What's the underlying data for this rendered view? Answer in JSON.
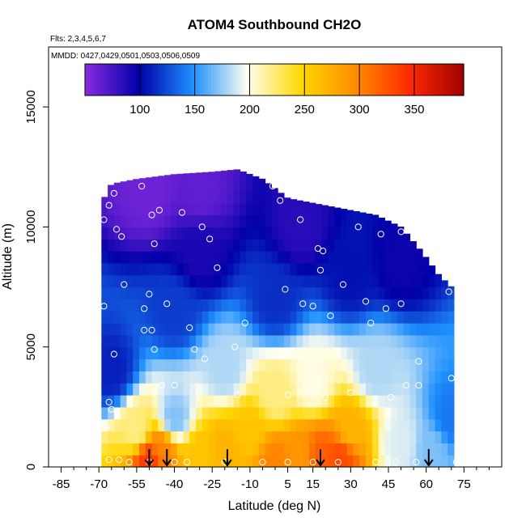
{
  "chart_data": {
    "type": "heatmap",
    "title": "ATOM4 Southbound CH2O",
    "flights_label": "Flts: 2,3,4,5,6,7",
    "dates_label": "MMDD: 0427,0429,0501,0503,0506,0509",
    "xlabel": "Latitude (deg N)",
    "ylabel": "Altitude (m)",
    "xlim": [
      -90,
      90
    ],
    "ylim": [
      0,
      17500
    ],
    "x_ticks": [
      -85,
      -70,
      -55,
      -40,
      -25,
      -10,
      5,
      15,
      30,
      45,
      60,
      75
    ],
    "x_tick_labels": [
      "-85",
      "-70",
      "-55",
      "-40",
      "-25",
      "-10",
      "5",
      "15",
      "30",
      "45",
      "60",
      "75"
    ],
    "y_ticks": [
      0,
      5000,
      10000,
      15000
    ],
    "y_tick_labels": [
      "0",
      "5000",
      "10000",
      "15000"
    ],
    "colorbar": {
      "range": [
        50,
        395
      ],
      "ticks": [
        100,
        150,
        200,
        250,
        300,
        350
      ],
      "tick_labels": [
        "100",
        "150",
        "200",
        "250",
        "300",
        "350"
      ],
      "colors": [
        "#8a2be2",
        "#0000a8",
        "#1e90ff",
        "#fffff0",
        "#ffd700",
        "#ff8c00",
        "#ff2a00",
        "#a00000"
      ]
    },
    "coverage_top_altitude_by_latitude": [
      {
        "lat": -69,
        "alt": 11000
      },
      {
        "lat": -65,
        "alt": 11800
      },
      {
        "lat": -55,
        "alt": 12000
      },
      {
        "lat": -40,
        "alt": 12200
      },
      {
        "lat": -25,
        "alt": 12300
      },
      {
        "lat": -15,
        "alt": 12400
      },
      {
        "lat": -5,
        "alt": 12000
      },
      {
        "lat": 5,
        "alt": 11200
      },
      {
        "lat": 15,
        "alt": 11000
      },
      {
        "lat": 30,
        "alt": 10700
      },
      {
        "lat": 40,
        "alt": 10500
      },
      {
        "lat": 50,
        "alt": 10000
      },
      {
        "lat": 58,
        "alt": 9000
      },
      {
        "lat": 65,
        "alt": 8000
      },
      {
        "lat": 70,
        "alt": 7500
      }
    ],
    "concentration_field_samples": [
      {
        "lat": -50,
        "alt": 300,
        "value": 340
      },
      {
        "lat": -45,
        "alt": 700,
        "value": 300
      },
      {
        "lat": -55,
        "alt": 1500,
        "value": 220
      },
      {
        "lat": -40,
        "alt": 2000,
        "value": 170
      },
      {
        "lat": -30,
        "alt": 500,
        "value": 260
      },
      {
        "lat": -20,
        "alt": 800,
        "value": 270
      },
      {
        "lat": -10,
        "alt": 1500,
        "value": 260
      },
      {
        "lat": 0,
        "alt": 300,
        "value": 300
      },
      {
        "lat": 10,
        "alt": 500,
        "value": 290
      },
      {
        "lat": 18,
        "alt": 400,
        "value": 320
      },
      {
        "lat": 26,
        "alt": 400,
        "value": 330
      },
      {
        "lat": 30,
        "alt": 1500,
        "value": 270
      },
      {
        "lat": 0,
        "alt": 3000,
        "value": 220
      },
      {
        "lat": 15,
        "alt": 3500,
        "value": 200
      },
      {
        "lat": -20,
        "alt": 4000,
        "value": 180
      },
      {
        "lat": 40,
        "alt": 4000,
        "value": 180
      },
      {
        "lat": 50,
        "alt": 1000,
        "value": 190
      },
      {
        "lat": 62,
        "alt": 700,
        "value": 170
      },
      {
        "lat": 70,
        "alt": 2000,
        "value": 140
      },
      {
        "lat": -65,
        "alt": 4000,
        "value": 110
      },
      {
        "lat": -40,
        "alt": 6500,
        "value": 120
      },
      {
        "lat": 0,
        "alt": 7000,
        "value": 115
      },
      {
        "lat": 30,
        "alt": 8000,
        "value": 105
      },
      {
        "lat": -30,
        "alt": 9000,
        "value": 90
      },
      {
        "lat": -50,
        "alt": 11500,
        "value": 60
      },
      {
        "lat": -30,
        "alt": 11500,
        "value": 65
      },
      {
        "lat": 10,
        "alt": 10000,
        "value": 85
      },
      {
        "lat": 50,
        "alt": 8500,
        "value": 95
      }
    ],
    "sample_points": [
      {
        "lat": -68,
        "alt": 6700
      },
      {
        "lat": -68,
        "alt": 10300
      },
      {
        "lat": -66,
        "alt": 10900
      },
      {
        "lat": -64,
        "alt": 11400
      },
      {
        "lat": -63,
        "alt": 9900
      },
      {
        "lat": -61,
        "alt": 9600
      },
      {
        "lat": -60,
        "alt": 7600
      },
      {
        "lat": -64,
        "alt": 4700
      },
      {
        "lat": -66,
        "alt": 2700
      },
      {
        "lat": -65,
        "alt": 2400
      },
      {
        "lat": -67,
        "alt": 1700
      },
      {
        "lat": -66,
        "alt": 300
      },
      {
        "lat": -62,
        "alt": 300
      },
      {
        "lat": -58,
        "alt": 200
      },
      {
        "lat": -53,
        "alt": 11700
      },
      {
        "lat": -49,
        "alt": 10500
      },
      {
        "lat": -46,
        "alt": 10700
      },
      {
        "lat": -48,
        "alt": 9300
      },
      {
        "lat": -50,
        "alt": 7200
      },
      {
        "lat": -52,
        "alt": 6600
      },
      {
        "lat": -52,
        "alt": 5700
      },
      {
        "lat": -49,
        "alt": 5700
      },
      {
        "lat": -48,
        "alt": 4900
      },
      {
        "lat": -45,
        "alt": 3400
      },
      {
        "lat": -43,
        "alt": 6800
      },
      {
        "lat": -37,
        "alt": 10600
      },
      {
        "lat": -34,
        "alt": 5800
      },
      {
        "lat": -32,
        "alt": 4900
      },
      {
        "lat": -28,
        "alt": 4500
      },
      {
        "lat": -26,
        "alt": 9500
      },
      {
        "lat": -29,
        "alt": 10000
      },
      {
        "lat": -23,
        "alt": 8300
      },
      {
        "lat": -16,
        "alt": 5000
      },
      {
        "lat": -12,
        "alt": 6000
      },
      {
        "lat": -1,
        "alt": 11700
      },
      {
        "lat": 2,
        "alt": 11100
      },
      {
        "lat": 10,
        "alt": 10300
      },
      {
        "lat": 4,
        "alt": 7400
      },
      {
        "lat": 11,
        "alt": 6800
      },
      {
        "lat": 15,
        "alt": 6700
      },
      {
        "lat": 17,
        "alt": 9100
      },
      {
        "lat": 19,
        "alt": 9000
      },
      {
        "lat": 18,
        "alt": 8200
      },
      {
        "lat": 22,
        "alt": 6300
      },
      {
        "lat": 27,
        "alt": 7600
      },
      {
        "lat": 33,
        "alt": 10000
      },
      {
        "lat": 42,
        "alt": 9700
      },
      {
        "lat": 50,
        "alt": 9800
      },
      {
        "lat": 57,
        "alt": 9600
      },
      {
        "lat": 65,
        "alt": 8500
      },
      {
        "lat": 69,
        "alt": 7300
      },
      {
        "lat": 36,
        "alt": 6900
      },
      {
        "lat": 38,
        "alt": 6000
      },
      {
        "lat": 44,
        "alt": 6600
      },
      {
        "lat": 50,
        "alt": 6800
      },
      {
        "lat": 57,
        "alt": 4400
      },
      {
        "lat": 70,
        "alt": 3700
      },
      {
        "lat": 5,
        "alt": 3000
      },
      {
        "lat": 10,
        "alt": 3000
      },
      {
        "lat": 15,
        "alt": 3100
      },
      {
        "lat": 20,
        "alt": 2900
      },
      {
        "lat": 30,
        "alt": 3100
      },
      {
        "lat": 46,
        "alt": 2900
      },
      {
        "lat": 52,
        "alt": 3400
      },
      {
        "lat": 57,
        "alt": 3400
      },
      {
        "lat": -15,
        "alt": 3000
      },
      {
        "lat": -40,
        "alt": 3400
      },
      {
        "lat": -50,
        "alt": 200
      },
      {
        "lat": -40,
        "alt": 200
      },
      {
        "lat": -35,
        "alt": 200
      },
      {
        "lat": -20,
        "alt": 200
      },
      {
        "lat": -5,
        "alt": 200
      },
      {
        "lat": 5,
        "alt": 200
      },
      {
        "lat": 15,
        "alt": 200
      },
      {
        "lat": 25,
        "alt": 200
      },
      {
        "lat": 40,
        "alt": 200
      },
      {
        "lat": 48,
        "alt": 200
      },
      {
        "lat": 56,
        "alt": 200
      },
      {
        "lat": 72,
        "alt": 200
      }
    ],
    "profile_markers_latitude": [
      -50,
      -43,
      -19,
      18,
      61
    ]
  }
}
